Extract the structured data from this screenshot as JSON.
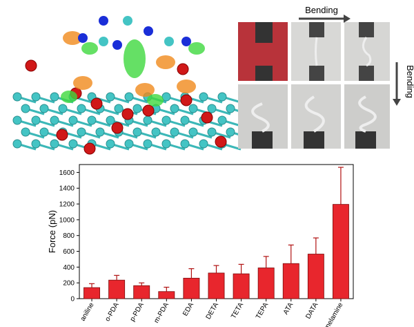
{
  "photo_panel": {
    "top_arrow_label": "Bending",
    "side_arrow_label": "Bending"
  },
  "chart_data": {
    "type": "bar",
    "y_label": "Force (pN)",
    "categories": [
      "aniline",
      "o-PDA",
      "p-PDA",
      "m-PDA",
      "EDA",
      "DETA",
      "TETA",
      "TEPA",
      "ATA",
      "DATA",
      "melamine"
    ],
    "values": [
      140,
      235,
      165,
      90,
      260,
      325,
      315,
      390,
      445,
      565,
      1195
    ],
    "errors": [
      50,
      60,
      35,
      55,
      120,
      95,
      120,
      145,
      235,
      205,
      470
    ],
    "color": "#e8262d",
    "ylim": [
      0,
      1700
    ],
    "yticks": [
      0,
      200,
      400,
      600,
      800,
      1000,
      1200,
      1400,
      1600
    ]
  }
}
